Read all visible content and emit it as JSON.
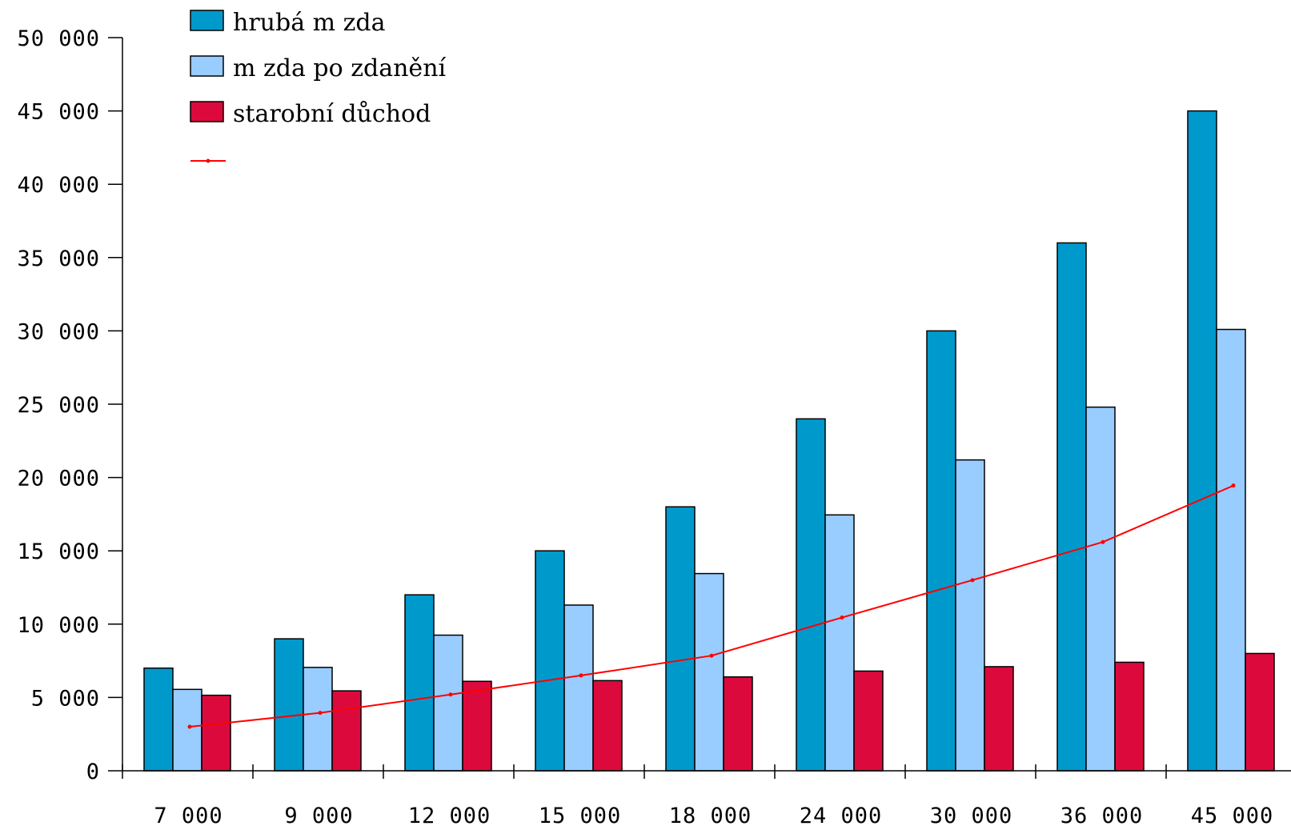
{
  "chart_data": {
    "type": "bar",
    "categories": [
      "7 000",
      "9 000",
      "12 000",
      "15 000",
      "18 000",
      "24 000",
      "30 000",
      "36 000",
      "45 000"
    ],
    "series": [
      {
        "name": "hrubá m zda",
        "type": "bar",
        "color": "#0099cc",
        "values": [
          7000,
          9000,
          12000,
          15000,
          18000,
          24000,
          30000,
          36000,
          45000
        ]
      },
      {
        "name": "m zda po zdanění",
        "type": "bar",
        "color": "#99ccff",
        "values": [
          5550,
          7050,
          9250,
          11300,
          13450,
          17450,
          21200,
          24800,
          30100
        ]
      },
      {
        "name": "starobní důchod",
        "type": "bar",
        "color": "#dc0a3c",
        "values": [
          5150,
          5450,
          6100,
          6150,
          6400,
          6800,
          7100,
          7400,
          8000
        ]
      },
      {
        "type": "line",
        "color": "#ff0000",
        "values": [
          3000,
          3950,
          5200,
          6500,
          7850,
          10450,
          13000,
          15600,
          19450
        ]
      }
    ],
    "ylim": [
      0,
      50000
    ],
    "yticks": [
      "0",
      "5 000",
      "10 000",
      "15 000",
      "20 000",
      "25 000",
      "30 000",
      "35 000",
      "40 000",
      "45 000",
      "50 000"
    ],
    "ytick_values": [
      0,
      5000,
      10000,
      15000,
      20000,
      25000,
      30000,
      35000,
      40000,
      45000,
      50000
    ],
    "grid": false,
    "legend": "top-left"
  }
}
